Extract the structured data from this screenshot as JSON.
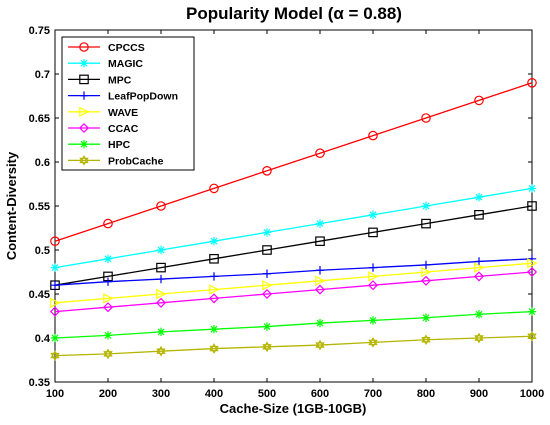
{
  "chart_data": {
    "type": "line",
    "title": "Popularity Model (α = 0.88)",
    "xlabel": "Cache-Size (1GB-10GB)",
    "ylabel": "Content-Diversity",
    "xlim": [
      100,
      1000
    ],
    "ylim": [
      0.35,
      0.75
    ],
    "x": [
      100,
      200,
      300,
      400,
      500,
      600,
      700,
      800,
      900,
      1000
    ],
    "x_ticks": [
      100,
      200,
      300,
      400,
      500,
      600,
      700,
      800,
      900,
      1000
    ],
    "y_ticks": [
      "0.35",
      "0.4",
      "0.45",
      "0.5",
      "0.55",
      "0.6",
      "0.65",
      "0.7",
      "0.75"
    ],
    "grid": false,
    "legend_position": "top-left",
    "series": [
      {
        "name": "CPCCS",
        "color": "#ff0000",
        "marker": "circle",
        "values": [
          0.51,
          0.53,
          0.55,
          0.57,
          0.59,
          0.61,
          0.63,
          0.65,
          0.67,
          0.69
        ]
      },
      {
        "name": "MAGIC",
        "color": "#00ffff",
        "marker": "asterisk",
        "values": [
          0.48,
          0.49,
          0.5,
          0.51,
          0.52,
          0.53,
          0.54,
          0.55,
          0.56,
          0.57
        ]
      },
      {
        "name": "MPC",
        "color": "#000000",
        "marker": "square",
        "values": [
          0.46,
          0.47,
          0.48,
          0.49,
          0.5,
          0.51,
          0.52,
          0.53,
          0.54,
          0.55
        ]
      },
      {
        "name": "LeafPopDown",
        "color": "#0000ff",
        "marker": "plus",
        "values": [
          0.46,
          0.464,
          0.467,
          0.47,
          0.473,
          0.477,
          0.48,
          0.483,
          0.487,
          0.49
        ]
      },
      {
        "name": "WAVE",
        "color": "#ffff00",
        "marker": "triangle-right",
        "values": [
          0.44,
          0.445,
          0.45,
          0.455,
          0.46,
          0.465,
          0.47,
          0.475,
          0.48,
          0.485
        ]
      },
      {
        "name": "CCAC",
        "color": "#ff00ff",
        "marker": "diamond",
        "values": [
          0.43,
          0.435,
          0.44,
          0.445,
          0.45,
          0.455,
          0.46,
          0.465,
          0.47,
          0.475
        ]
      },
      {
        "name": "HPC",
        "color": "#00ff00",
        "marker": "asterisk",
        "values": [
          0.4,
          0.403,
          0.407,
          0.41,
          0.413,
          0.417,
          0.42,
          0.423,
          0.427,
          0.43
        ]
      },
      {
        "name": "ProbCache",
        "color": "#b5b500",
        "marker": "hexagram",
        "values": [
          0.38,
          0.382,
          0.385,
          0.388,
          0.39,
          0.392,
          0.395,
          0.398,
          0.4,
          0.402
        ]
      }
    ]
  }
}
